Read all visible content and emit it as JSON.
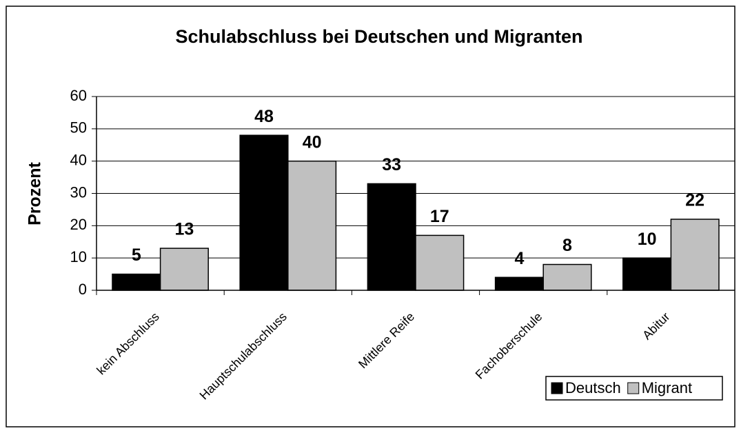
{
  "chart_data": {
    "type": "bar",
    "title": "Schulabschluss bei Deutschen und Migranten",
    "ylabel": "Prozent",
    "categories": [
      "kein Abschluss",
      "Hauptschulabschluss",
      "Mittlere Reife",
      "Fachoberschule",
      "Abitur"
    ],
    "series": [
      {
        "name": "Deutsch",
        "color": "#000000",
        "values": [
          5,
          48,
          33,
          4,
          10
        ]
      },
      {
        "name": "Migrant",
        "color": "#c0c0c0",
        "values": [
          13,
          40,
          17,
          8,
          22
        ]
      }
    ],
    "ylim": [
      0,
      60
    ],
    "yticks": [
      0,
      10,
      20,
      30,
      40,
      50,
      60
    ],
    "grid": true,
    "legend": "bottom-right"
  }
}
